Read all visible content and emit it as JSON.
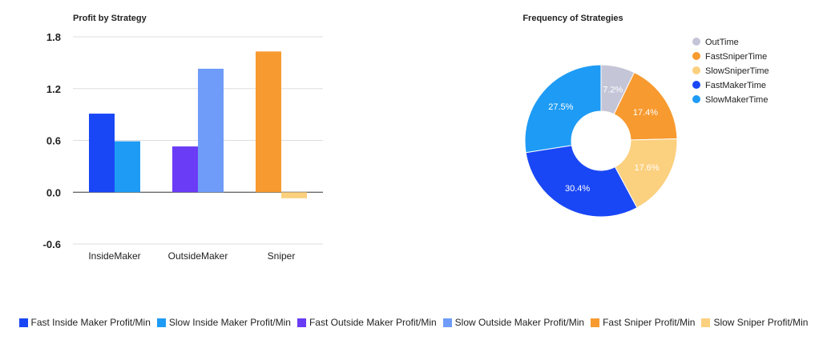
{
  "chart_data": [
    {
      "type": "bar",
      "title": "Profit by Strategy",
      "xlabel": "",
      "ylabel": "",
      "categories": [
        "InsideMaker",
        "OutsideMaker",
        "Sniper"
      ],
      "ylim": [
        -0.6,
        1.8
      ],
      "yticks": [
        "1.8",
        "1.2",
        "0.6",
        "0.0",
        "-0.6"
      ],
      "grid": true,
      "legend_position": "bottom",
      "series": [
        {
          "name": "Fast Inside Maker Profit/Min",
          "color": "#1a47f5",
          "values": [
            0.91,
            null,
            null
          ]
        },
        {
          "name": "Slow Inside Maker Profit/Min",
          "color": "#1e9bf5",
          "values": [
            0.59,
            null,
            null
          ]
        },
        {
          "name": "Fast Outside Maker Profit/Min",
          "color": "#6a3cf5",
          "values": [
            null,
            0.53,
            null
          ]
        },
        {
          "name": "Slow Outside Maker Profit/Min",
          "color": "#6e9cf8",
          "values": [
            null,
            1.43,
            null
          ]
        },
        {
          "name": "Fast Sniper Profit/Min",
          "color": "#f79a2f",
          "values": [
            null,
            null,
            1.63
          ]
        },
        {
          "name": "Slow Sniper Profit/Min",
          "color": "#fbd07e",
          "values": [
            null,
            null,
            -0.07
          ]
        }
      ]
    },
    {
      "type": "pie",
      "title": "Frequency of Strategies",
      "donut": true,
      "legend_position": "right",
      "slices": [
        {
          "label": "OutTime",
          "value": 7.2,
          "display": "7.2%",
          "color": "#c5c5d8"
        },
        {
          "label": "FastSniperTime",
          "value": 17.4,
          "display": "17.4%",
          "color": "#f79a2f"
        },
        {
          "label": "SlowSniperTime",
          "value": 17.6,
          "display": "17.6%",
          "color": "#fbd07e"
        },
        {
          "label": "FastMakerTime",
          "value": 30.4,
          "display": "30.4%",
          "color": "#1a47f5"
        },
        {
          "label": "SlowMakerTime",
          "value": 27.5,
          "display": "27.5%",
          "color": "#1e9bf5"
        }
      ]
    }
  ]
}
